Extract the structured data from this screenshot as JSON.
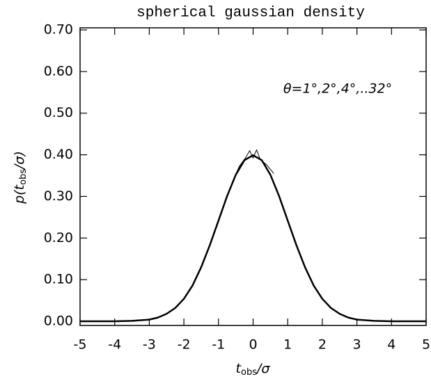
{
  "chart_data": {
    "type": "line",
    "title": "spherical gaussian density",
    "x_label": {
      "main": "t",
      "sub": "obs",
      "tail": "/σ"
    },
    "y_label": {
      "main": "p(t",
      "sub": "obs",
      "tail": "/σ)"
    },
    "annotation": "θ=1°,2°,4°,..32°",
    "xlim": [
      -5,
      5
    ],
    "ylim": [
      -0.01,
      0.705
    ],
    "xticks": [
      -5,
      -4,
      -3,
      -2,
      -1,
      0,
      1,
      2,
      3,
      4,
      5
    ],
    "yticks": [
      {
        "value": 0,
        "label": "0.00"
      },
      {
        "value": 0.1,
        "label": "0.10"
      },
      {
        "value": 0.2,
        "label": "0.20"
      },
      {
        "value": 0.3,
        "label": "0.30"
      },
      {
        "value": 0.4,
        "label": "0.40"
      },
      {
        "value": 0.5,
        "label": "0.50"
      },
      {
        "value": 0.6,
        "label": "0.60"
      },
      {
        "value": 0.7,
        "label": "0.70"
      }
    ],
    "series": [
      {
        "color": "#000000",
        "width": 2.5,
        "x": [
          -5,
          -4.5,
          -4,
          -3.5,
          -3,
          -2.75,
          -2.5,
          -2.25,
          -2,
          -1.75,
          -1.5,
          -1.25,
          -1,
          -0.75,
          -0.5,
          -0.25,
          0,
          0.25,
          0.5,
          0.75,
          1,
          1.25,
          1.5,
          1.75,
          2,
          2.25,
          2.5,
          2.75,
          3,
          3.5,
          4,
          4.5,
          5
        ],
        "values": [
          0,
          0,
          0,
          0.001,
          0.004,
          0.009,
          0.018,
          0.032,
          0.054,
          0.086,
          0.13,
          0.183,
          0.242,
          0.301,
          0.352,
          0.387,
          0.399,
          0.387,
          0.352,
          0.301,
          0.242,
          0.183,
          0.13,
          0.086,
          0.054,
          0.032,
          0.018,
          0.009,
          0.004,
          0.001,
          0,
          0,
          0
        ]
      },
      {
        "color": "#000000",
        "width": 1,
        "x": [
          -0.6,
          -0.4,
          -0.2,
          -0.1,
          0,
          0.1,
          0.2,
          0.4,
          0.6
        ],
        "values": [
          0.335,
          0.372,
          0.395,
          0.41,
          0.392,
          0.412,
          0.39,
          0.375,
          0.355
        ]
      }
    ]
  }
}
